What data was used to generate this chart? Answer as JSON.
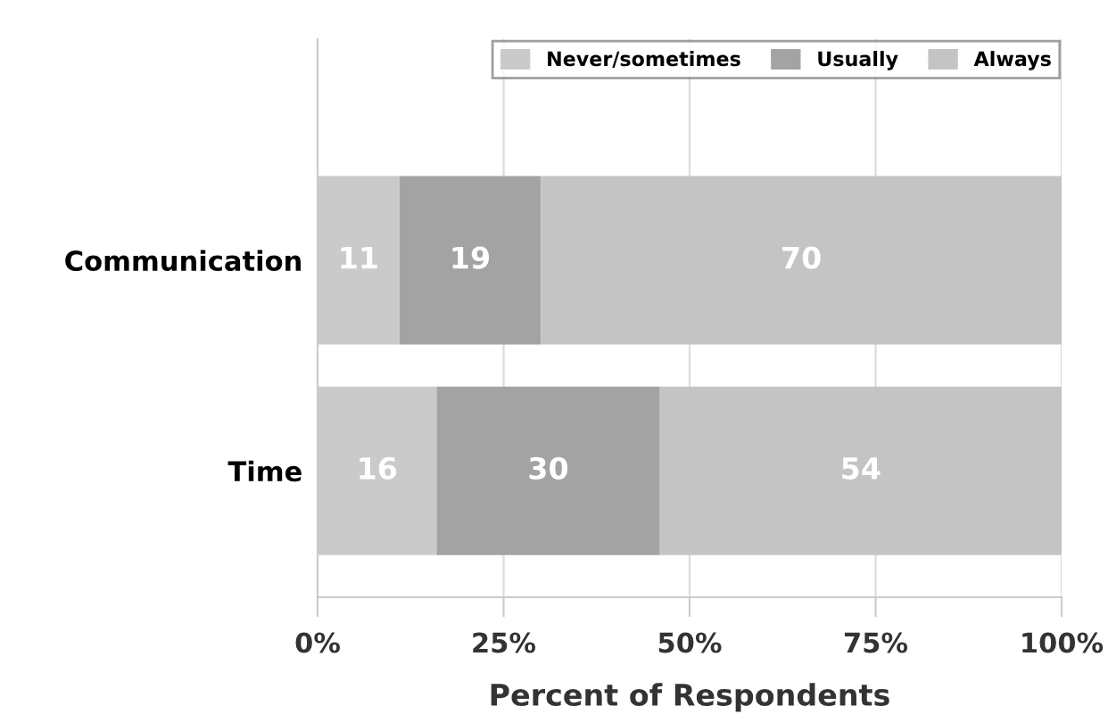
{
  "chart_data": {
    "type": "bar",
    "orientation": "horizontal",
    "stacked": true,
    "xlabel": "Percent of Respondents",
    "categories": [
      "Communication",
      "Time"
    ],
    "series": [
      {
        "name": "Never/sometimes",
        "color": "#cacaca",
        "values": [
          11,
          16
        ]
      },
      {
        "name": "Usually",
        "color": "#a3a3a3",
        "values": [
          19,
          30
        ]
      },
      {
        "name": "Always",
        "color": "#c4c4c4",
        "values": [
          70,
          54
        ]
      }
    ],
    "xlim": [
      0,
      100
    ],
    "xticks": [
      {
        "value": 0,
        "label": "0%"
      },
      {
        "value": 25,
        "label": "25%"
      },
      {
        "value": 50,
        "label": "50%"
      },
      {
        "value": 75,
        "label": "75%"
      },
      {
        "value": 100,
        "label": "100%"
      }
    ],
    "grid": "x",
    "legend": "top right",
    "data_labels": true
  }
}
